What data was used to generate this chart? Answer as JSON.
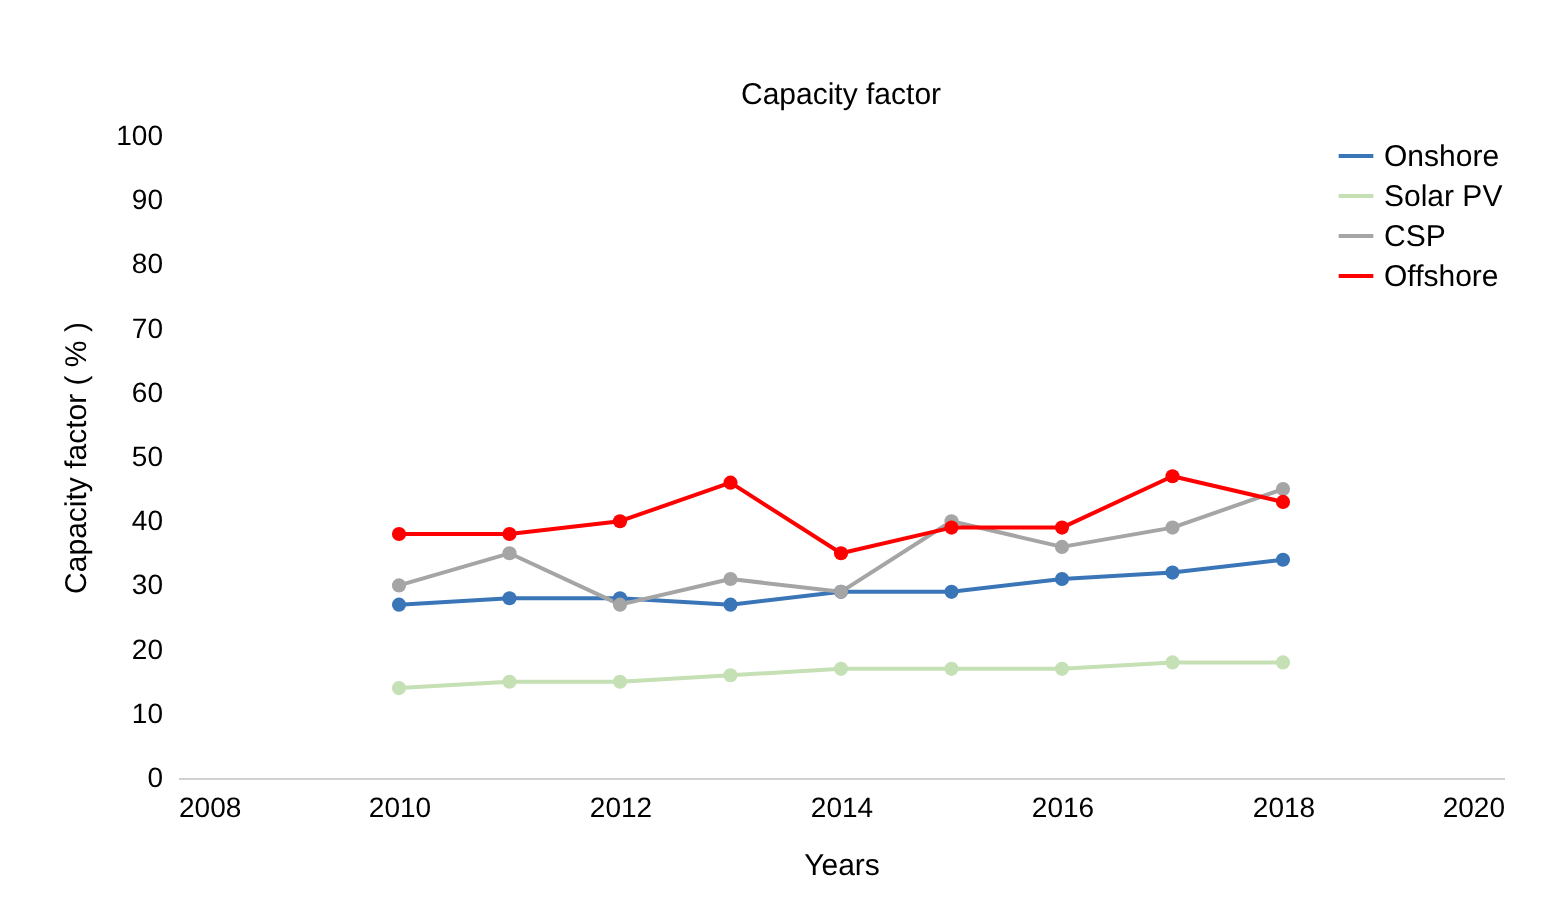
{
  "chart_data": {
    "type": "line",
    "title": "Capacity factor",
    "xlabel": "Years",
    "ylabel": "Capacity factor ( % )",
    "x": [
      2010,
      2011,
      2012,
      2013,
      2014,
      2015,
      2016,
      2017,
      2018
    ],
    "series": [
      {
        "name": "Onshore",
        "color": "#3a75b8",
        "values": [
          27,
          28,
          28,
          27,
          29,
          29,
          31,
          32,
          34
        ]
      },
      {
        "name": "Solar PV",
        "color": "#c5e0b4",
        "values": [
          14,
          15,
          15,
          16,
          17,
          17,
          17,
          18,
          18
        ]
      },
      {
        "name": "CSP",
        "color": "#a5a5a5",
        "values": [
          30,
          35,
          27,
          31,
          29,
          40,
          36,
          39,
          45
        ]
      },
      {
        "name": "Offshore",
        "color": "#ff0000",
        "values": [
          38,
          38,
          40,
          46,
          35,
          39,
          39,
          47,
          43
        ]
      }
    ],
    "xlim": [
      2008,
      2020
    ],
    "xticks": [
      2008,
      2010,
      2012,
      2014,
      2016,
      2018,
      2020
    ],
    "ylim": [
      0,
      100
    ],
    "yticks": [
      0,
      10,
      20,
      30,
      40,
      50,
      60,
      70,
      80,
      90,
      100
    ],
    "grid": false,
    "legend": "top right",
    "marker": "circle"
  }
}
